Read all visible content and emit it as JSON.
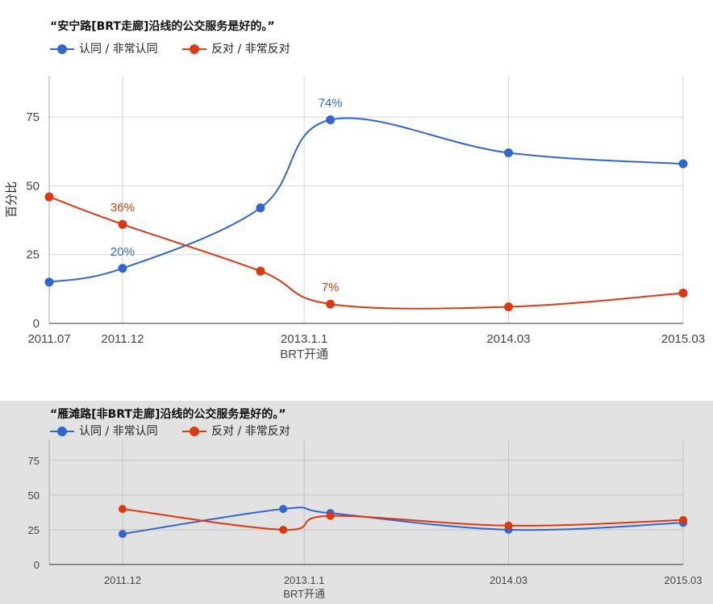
{
  "chart_data": [
    {
      "type": "line",
      "title": "“安宁路[BRT走廊]沿线的公交服务是好的。”",
      "ylabel": "百分比",
      "ylim": [
        0,
        90
      ],
      "yticks": [
        0,
        25,
        50,
        75
      ],
      "xticks": [
        {
          "x": 2011.54,
          "label": "2011.07"
        },
        {
          "x": 2011.96,
          "label": "2011.12"
        },
        {
          "x": 2013.0,
          "label": "2013.1.1"
        },
        {
          "x": 2014.17,
          "label": "2014.03"
        },
        {
          "x": 2015.17,
          "label": "2015.03"
        }
      ],
      "xlim": [
        2011.54,
        2015.17
      ],
      "xannotation": "BRT开通",
      "legend_position": "top",
      "grid": true,
      "series": [
        {
          "name": "认同 / 非常认同",
          "color": "#3366cc",
          "x": [
            2011.54,
            2011.96,
            2012.75,
            2013.15,
            2014.17,
            2015.17
          ],
          "y": [
            15,
            20,
            42,
            74,
            62,
            58
          ],
          "labels": {
            "1": "20%",
            "3": "74%"
          }
        },
        {
          "name": "反对 / 非常反对",
          "color": "#dc3912",
          "x": [
            2011.54,
            2011.96,
            2012.75,
            2013.15,
            2014.17,
            2015.17
          ],
          "y": [
            46,
            36,
            19,
            7,
            6,
            11
          ],
          "labels": {
            "1": "36%",
            "3": "7%"
          }
        }
      ]
    },
    {
      "type": "line",
      "title": "“雁滩路[非BRT走廊]沿线的公交服务是好的。”",
      "ylabel": "",
      "ylim": [
        0,
        90
      ],
      "yticks": [
        0,
        25,
        50,
        75
      ],
      "xticks": [
        {
          "x": 2011.96,
          "label": "2011.12"
        },
        {
          "x": 2013.0,
          "label": "2013.1.1"
        },
        {
          "x": 2014.17,
          "label": "2014.03"
        },
        {
          "x": 2015.17,
          "label": "2015.03"
        }
      ],
      "xlim": [
        2011.54,
        2015.17
      ],
      "xannotation": "BRT开通",
      "legend_position": "top",
      "grid": true,
      "series": [
        {
          "name": "认同 / 非常认同",
          "color": "#3366cc",
          "x": [
            2011.96,
            2012.88,
            2013.15,
            2014.17,
            2015.17
          ],
          "y": [
            22,
            40,
            37,
            25,
            30
          ],
          "labels": {}
        },
        {
          "name": "反对 / 非常反对",
          "color": "#dc3912",
          "x": [
            2011.96,
            2012.88,
            2013.15,
            2014.17,
            2015.17
          ],
          "y": [
            40,
            25,
            35,
            28,
            32
          ],
          "labels": {}
        }
      ]
    }
  ]
}
